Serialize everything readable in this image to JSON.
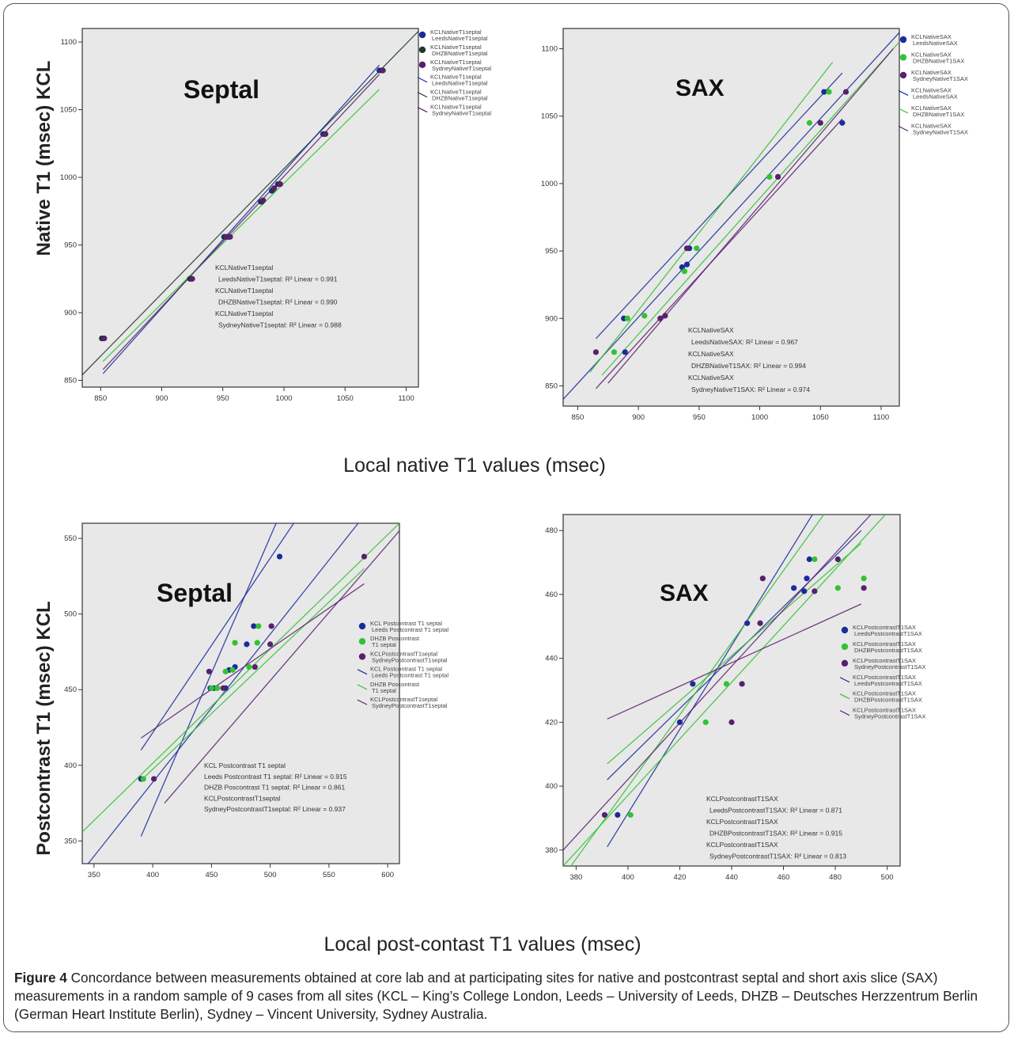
{
  "figure": {
    "ylabel_top": "Native T1 (msec) KCL",
    "xlabel_top": "Local native T1 values (msec)",
    "ylabel_bottom": "Postcontrast T1 (msec) KCL",
    "xlabel_bottom": "Local post-contast T1 values (msec)",
    "caption_label": "Figure 4",
    "caption_text": "Concordance between measurements obtained at core lab and at participating sites for native and postcontrast septal and short axis slice (SAX) measurements in a random sample of 9 cases from all sites (KCL – King’s College London, Leeds – University of Leeds, DHZB – Deutsches Herzzentrum Berlin (German Heart Institute Berlin), Sydney – Vincent University, Sydney Australia."
  },
  "colors": {
    "blue": "#1a2b9c",
    "green": "#33c233",
    "darkgreen": "#1e3a2a",
    "purple": "#5a1f6e",
    "plot_bg": "#e8e8e8"
  },
  "chart_data": [
    {
      "type": "scatter",
      "title": "Septal",
      "xlim": [
        835,
        1110
      ],
      "ylim": [
        845,
        1110
      ],
      "xticks": [
        850,
        900,
        950,
        1000,
        1050,
        1100
      ],
      "yticks": [
        850,
        900,
        950,
        1000,
        1050,
        1100
      ],
      "legend": [
        "KCLNativeT1septal LeedsNativeT1septal",
        "KCLNativeT1septal DHZBNativeT1septal",
        "KCLNativeT1septal SydneyNativeT1septal",
        "KCLNativeT1septal LeedsNativeT1septal",
        "KCLNativeT1septal DHZBNativeT1septal",
        "KCLNativeT1septal SydneyNativeT1septal"
      ],
      "annotation": [
        "KCLNativeT1septal",
        "LeedsNativeT1septal: R² Linear = 0.991",
        "KCLNativeT1septal",
        "DHZBNativeT1septal: R² Linear = 0.990",
        "KCLNativeT1septal",
        "SydneyNativeT1septal: R² Linear = 0.988"
      ],
      "series": [
        {
          "color": "blue",
          "x": [
            852,
            924,
            951,
            955,
            981,
            990,
            995,
            1032,
            1078
          ],
          "y": [
            881,
            925,
            956,
            956,
            982,
            990,
            995,
            1032,
            1079
          ]
        },
        {
          "color": "darkgreen",
          "x": [
            851,
            923,
            952,
            954,
            982,
            991,
            996,
            1033,
            1080
          ],
          "y": [
            881,
            925,
            956,
            956,
            982,
            991,
            995,
            1032,
            1079
          ]
        },
        {
          "color": "purple",
          "x": [
            853,
            925,
            953,
            956,
            983,
            992,
            997,
            1034,
            1081
          ],
          "y": [
            881,
            925,
            956,
            956,
            983,
            992,
            995,
            1032,
            1079
          ]
        }
      ],
      "fit_lines": [
        {
          "color": "darkgreen",
          "x": [
            835,
            1110
          ],
          "y": [
            854,
            1108
          ]
        },
        {
          "color": "blue",
          "x": [
            852,
            1078
          ],
          "y": [
            855,
            1083
          ]
        },
        {
          "color": "green",
          "x": [
            852,
            1078
          ],
          "y": [
            864,
            1065
          ]
        },
        {
          "color": "purple",
          "x": [
            852,
            1078
          ],
          "y": [
            858,
            1076
          ]
        }
      ]
    },
    {
      "type": "scatter",
      "title": "SAX",
      "xlim": [
        838,
        1115
      ],
      "ylim": [
        835,
        1115
      ],
      "xticks": [
        850,
        900,
        950,
        1000,
        1050,
        1100
      ],
      "yticks": [
        850,
        900,
        950,
        1000,
        1050,
        1100
      ],
      "legend": [
        "KCLNativeSAX LeedsNativeSAX",
        "KCLNativeSAX DHZBNativeT1SAX",
        "KCLNativeSAX SydneyNativeT1SAX",
        "KCLNativeSAX LeedsNativeSAX",
        "KCLNativeSAX DHZBNativeT1SAX",
        "KCLNativeSAX SydneyNativeT1SAX"
      ],
      "annotation": [
        "KCLNativeSAX",
        "LeedsNativeSAX: R² Linear = 0.967",
        "KCLNativeSAX",
        "DHZBNativeT1SAX: R² Linear = 0.994",
        "KCLNativeSAX",
        "SydneyNativeT1SAX: R² Linear = 0.974"
      ],
      "series": [
        {
          "color": "blue",
          "x": [
            888,
            889,
            936,
            940,
            942,
            1053,
            1068
          ],
          "y": [
            900,
            875,
            938,
            940,
            952,
            1068,
            1045
          ]
        },
        {
          "color": "green",
          "x": [
            880,
            891,
            905,
            938,
            948,
            1008,
            1041,
            1057
          ],
          "y": [
            875,
            900,
            902,
            935,
            952,
            1005,
            1045,
            1068
          ]
        },
        {
          "color": "purple",
          "x": [
            865,
            918,
            922,
            940,
            1015,
            1050,
            1071
          ],
          "y": [
            875,
            900,
            902,
            952,
            1005,
            1045,
            1068
          ]
        }
      ],
      "fit_lines": [
        {
          "color": "blue",
          "x": [
            838,
            1115
          ],
          "y": [
            840,
            1112
          ]
        },
        {
          "color": "blue",
          "x": [
            865,
            1068
          ],
          "y": [
            885,
            1082
          ]
        },
        {
          "color": "green",
          "x": [
            860,
            1060
          ],
          "y": [
            860,
            1090
          ]
        },
        {
          "color": "green",
          "x": [
            870,
            1115
          ],
          "y": [
            858,
            1105
          ]
        },
        {
          "color": "purple",
          "x": [
            865,
            1068
          ],
          "y": [
            848,
            1048
          ]
        },
        {
          "color": "purple",
          "x": [
            875,
            1110
          ],
          "y": [
            852,
            1100
          ]
        }
      ]
    },
    {
      "type": "scatter",
      "title": "Septal",
      "xlim": [
        340,
        610
      ],
      "ylim": [
        335,
        560
      ],
      "xticks": [
        350,
        400,
        450,
        500,
        550,
        600
      ],
      "yticks": [
        350,
        400,
        450,
        500,
        550
      ],
      "legend": [
        "KCL Postcontrast T1 septal Leeds Postcontrast T1 septal",
        "DHZB Poscontrast T1 septal",
        "KCLPostcontrastT1septal SydneyPostcontrastT1septal",
        "KCL Postcontrast T1 septal Leeds Postcontrast T1 septal",
        "DHZB Poscontrast T1 septal",
        "KCLPostcontrastT1septal SydneyPostcontrastT1septal"
      ],
      "annotation": [
        "KCL Postcontrast T1 septal",
        "Leeds Postcontrast T1 septal: R² Linear = 0.915",
        "DHZB Poscontrast T1 septal: R² Linear = 0.861",
        "KCLPostcontrastT1septal",
        "SydneyPostcontrastT1septal: R² Linear = 0.937"
      ],
      "series": [
        {
          "color": "blue",
          "x": [
            390,
            449,
            452,
            462,
            465,
            470,
            480,
            486,
            508
          ],
          "y": [
            391,
            451,
            451,
            451,
            463,
            465,
            480,
            492,
            538
          ]
        },
        {
          "color": "green",
          "x": [
            392,
            450,
            455,
            462,
            468,
            470,
            482,
            489,
            490
          ],
          "y": [
            391,
            451,
            451,
            462,
            463,
            481,
            465,
            481,
            492
          ]
        },
        {
          "color": "purple",
          "x": [
            401,
            448,
            460,
            487,
            500,
            501,
            580
          ],
          "y": [
            391,
            462,
            451,
            465,
            480,
            492,
            538
          ]
        }
      ],
      "fit_lines": [
        {
          "color": "blue",
          "x": [
            345,
            580
          ],
          "y": [
            335,
            565
          ]
        },
        {
          "color": "blue",
          "x": [
            390,
            520
          ],
          "y": [
            410,
            560
          ]
        },
        {
          "color": "blue",
          "x": [
            390,
            505
          ],
          "y": [
            353,
            560
          ]
        },
        {
          "color": "green",
          "x": [
            340,
            610
          ],
          "y": [
            356,
            560
          ]
        },
        {
          "color": "green",
          "x": [
            390,
            580
          ],
          "y": [
            390,
            530
          ]
        },
        {
          "color": "purple",
          "x": [
            390,
            580
          ],
          "y": [
            418,
            520
          ]
        },
        {
          "color": "purple",
          "x": [
            410,
            610
          ],
          "y": [
            375,
            555
          ]
        }
      ]
    },
    {
      "type": "scatter",
      "title": "SAX",
      "xlim": [
        375,
        505
      ],
      "ylim": [
        375,
        485
      ],
      "xticks": [
        380,
        400,
        420,
        440,
        460,
        480,
        500
      ],
      "yticks": [
        380,
        400,
        420,
        440,
        460,
        480
      ],
      "legend": [
        "KCLPostcontrastT1SAX LeedsPostcontrastT1SAX",
        "KCLPostcontrastT1SAX DHZBPostcontrastT1SAX",
        "KCLPostcontrastT1SAX SydneyPostcontrastT1SAX",
        "KCLPostcontrastT1SAX LeedsPostcontrastT1SAX",
        "KCLPostcontrastT1SAX DHZBPostcontrastT1SAX",
        "KCLPostcontrastT1SAX SydneyPostcontrastT1SAX"
      ],
      "annotation": [
        "KCLPostcontrastT1SAX",
        "LeedsPostcontrastT1SAX: R² Linear = 0.871",
        "KCLPostcontrastT1SAX",
        "DHZBPostcontrastT1SAX: R² Linear = 0.915",
        "KCLPostcontrastT1SAX",
        "SydneyPostcontrastT1SAX: R² Linear = 0.813"
      ],
      "series": [
        {
          "color": "blue",
          "x": [
            396,
            420,
            425,
            446,
            464,
            468,
            469,
            470
          ],
          "y": [
            391,
            420,
            432,
            451,
            462,
            461,
            465,
            471
          ]
        },
        {
          "color": "green",
          "x": [
            401,
            430,
            438,
            472,
            481,
            491
          ],
          "y": [
            391,
            420,
            432,
            471,
            462,
            465
          ]
        },
        {
          "color": "purple",
          "x": [
            391,
            440,
            444,
            451,
            452,
            472,
            481,
            491
          ],
          "y": [
            391,
            420,
            432,
            451,
            465,
            461,
            471,
            462
          ]
        }
      ],
      "fit_lines": [
        {
          "color": "blue",
          "x": [
            392,
            475
          ],
          "y": [
            381,
            490
          ]
        },
        {
          "color": "blue",
          "x": [
            392,
            490
          ],
          "y": [
            402,
            480
          ]
        },
        {
          "color": "green",
          "x": [
            375,
            505
          ],
          "y": [
            375,
            490
          ]
        },
        {
          "color": "green",
          "x": [
            392,
            490
          ],
          "y": [
            407,
            476
          ]
        },
        {
          "color": "green",
          "x": [
            378,
            480
          ],
          "y": [
            375,
            490
          ]
        },
        {
          "color": "purple",
          "x": [
            375,
            505
          ],
          "y": [
            380,
            495
          ]
        },
        {
          "color": "purple",
          "x": [
            392,
            490
          ],
          "y": [
            421,
            457
          ]
        }
      ]
    }
  ]
}
